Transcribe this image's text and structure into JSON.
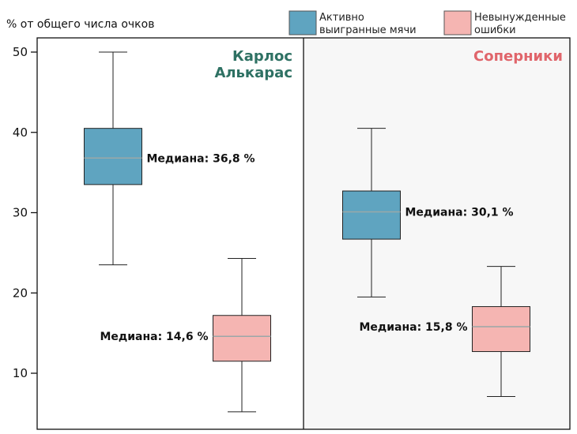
{
  "chart_data": {
    "type": "box",
    "ylabel": "% от общего числа очков",
    "ylim": [
      3,
      50
    ],
    "yticks": [
      10,
      20,
      30,
      40,
      50
    ],
    "colors": {
      "winners": "#5fa4c0",
      "errors": "#f5b5b2",
      "median_line": "#9aa8a8",
      "left_title": "#2e7163",
      "right_title": "#e0656b",
      "right_panel_bg": "#f7f7f7"
    },
    "legend": [
      {
        "key": "winners",
        "label_lines": [
          "Активно",
          "выигранные мячи"
        ]
      },
      {
        "key": "errors",
        "label_lines": [
          "Невынужденные",
          "ошибки"
        ]
      }
    ],
    "panels": [
      {
        "title_lines": [
          "Карлос",
          "Алькарас"
        ],
        "title_color": "left_title",
        "boxes": [
          {
            "series": "winners",
            "min": 23.5,
            "q1": 33.5,
            "median": 36.8,
            "q3": 40.5,
            "max": 50,
            "label": "Медиана: 36,8 %",
            "label_side": "right"
          },
          {
            "series": "errors",
            "min": 5.2,
            "q1": 11.5,
            "median": 14.6,
            "q3": 17.2,
            "max": 24.3,
            "label": "Медиана: 14,6 %",
            "label_side": "left"
          }
        ]
      },
      {
        "title_lines": [
          "Соперники"
        ],
        "title_color": "right_title",
        "boxes": [
          {
            "series": "winners",
            "min": 19.5,
            "q1": 26.7,
            "median": 30.1,
            "q3": 32.7,
            "max": 40.5,
            "label": "Медиана: 30,1 %",
            "label_side": "right"
          },
          {
            "series": "errors",
            "min": 7.1,
            "q1": 12.7,
            "median": 15.8,
            "q3": 18.3,
            "max": 23.3,
            "label": "Медиана: 15,8 %",
            "label_side": "left"
          }
        ]
      }
    ]
  }
}
